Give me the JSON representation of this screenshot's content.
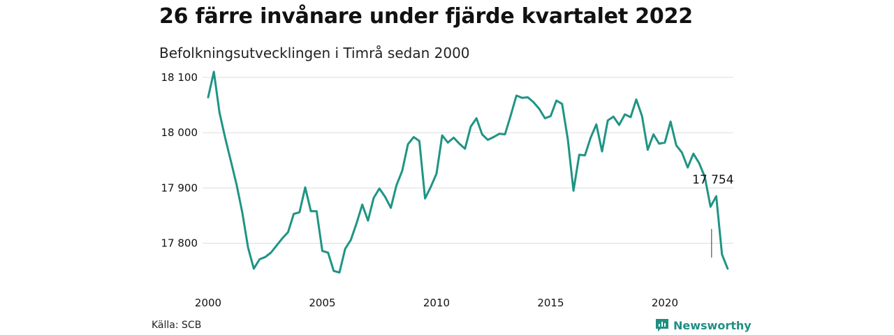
{
  "header": {
    "title": "26 färre invånare under fjärde kvartalet 2022",
    "subtitle": "Befolkningsutvecklingen i Timrå sedan 2000"
  },
  "footer": {
    "source": "Källa: SCB",
    "brand": "Newsworthy"
  },
  "colors": {
    "line": "#1f9484",
    "grid": "#dddddd",
    "brand": "#1f8f83"
  },
  "chart_data": {
    "type": "line",
    "title": "26 färre invånare under fjärde kvartalet 2022",
    "subtitle": "Befolkningsutvecklingen i Timrå sedan 2000",
    "xlabel": "",
    "ylabel": "",
    "x_ticks": [
      2000,
      2005,
      2010,
      2015,
      2020
    ],
    "y_ticks": [
      17800,
      17900,
      18000,
      18100
    ],
    "y_tick_labels": [
      "17 800",
      "17 900",
      "18 000",
      "18 100"
    ],
    "xlim": [
      2000,
      2023
    ],
    "ylim": [
      17730,
      18120
    ],
    "grid": true,
    "legend": "none",
    "annotation": {
      "label": "17 754"
    },
    "series": [
      {
        "x": [
          2000,
          2000.25,
          2000.5,
          2000.75,
          2001,
          2001.25,
          2001.5,
          2001.75,
          2002,
          2002.25,
          2002.5,
          2002.75,
          2003,
          2003.25,
          2003.5,
          2003.75,
          2004,
          2004.25,
          2004.5,
          2004.75,
          2005,
          2005.25,
          2005.5,
          2005.75,
          2006,
          2006.25,
          2006.5,
          2006.75,
          2007,
          2007.25,
          2007.5,
          2007.75,
          2008,
          2008.25,
          2008.5,
          2008.75,
          2009,
          2009.25,
          2009.5,
          2009.75,
          2010,
          2010.25,
          2010.5,
          2010.75,
          2011,
          2011.25,
          2011.5,
          2011.75,
          2012,
          2012.25,
          2012.5,
          2012.75,
          2013,
          2013.25,
          2013.5,
          2013.75,
          2014,
          2014.25,
          2014.5,
          2014.75,
          2015,
          2015.25,
          2015.5,
          2015.75,
          2016,
          2016.25,
          2016.5,
          2016.75,
          2017,
          2017.25,
          2017.5,
          2017.75,
          2018,
          2018.25,
          2018.5,
          2018.75,
          2019,
          2019.25,
          2019.5,
          2019.75,
          2020,
          2020.25,
          2020.5,
          2020.75,
          2021,
          2021.25,
          2021.5,
          2021.75,
          2022,
          2022.25,
          2022.5,
          2022.75
        ],
        "values": [
          18064,
          18110,
          18036,
          17990,
          17948,
          17905,
          17855,
          17792,
          17754,
          17771,
          17775,
          17783,
          17796,
          17809,
          17820,
          17853,
          17856,
          17901,
          17858,
          17858,
          17786,
          17783,
          17750,
          17747,
          17790,
          17806,
          17836,
          17870,
          17841,
          17882,
          17899,
          17884,
          17864,
          17905,
          17931,
          17979,
          17992,
          17985,
          17881,
          17902,
          17926,
          17995,
          17982,
          17991,
          17980,
          17971,
          18011,
          18026,
          17997,
          17987,
          17992,
          17998,
          17997,
          18031,
          18067,
          18063,
          18064,
          18055,
          18043,
          18026,
          18030,
          18058,
          18052,
          17988,
          17895,
          17960,
          17959,
          17991,
          18015,
          17966,
          18022,
          18029,
          18014,
          18033,
          18028,
          18060,
          18030,
          17969,
          17997,
          17980,
          17982,
          18020,
          17977,
          17964,
          17937,
          17962,
          17945,
          17920,
          17866,
          17885,
          17780,
          17754
        ]
      }
    ]
  }
}
